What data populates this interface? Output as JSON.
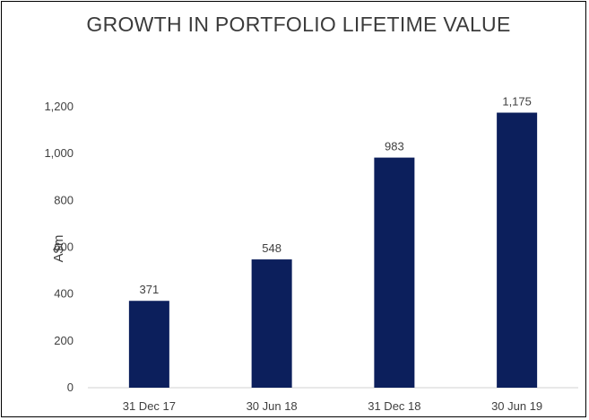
{
  "chart_data": {
    "type": "bar",
    "title": "GROWTH IN PORTFOLIO LIFETIME VALUE",
    "xlabel": "",
    "ylabel": "A$m",
    "categories": [
      "31 Dec 17",
      "30 Jun 18",
      "31 Dec 18",
      "30 Jun 19"
    ],
    "values": [
      371,
      548,
      983,
      1175
    ],
    "value_labels": [
      "371",
      "548",
      "983",
      "1,175"
    ],
    "ylim": [
      0,
      1200
    ],
    "yticks": [
      0,
      200,
      400,
      600,
      800,
      1000,
      1200
    ],
    "ytick_labels": [
      "0",
      "200",
      "400",
      "600",
      "800",
      "1,000",
      "1,200"
    ],
    "grid": false,
    "bar_color": "#0c1f5c"
  }
}
